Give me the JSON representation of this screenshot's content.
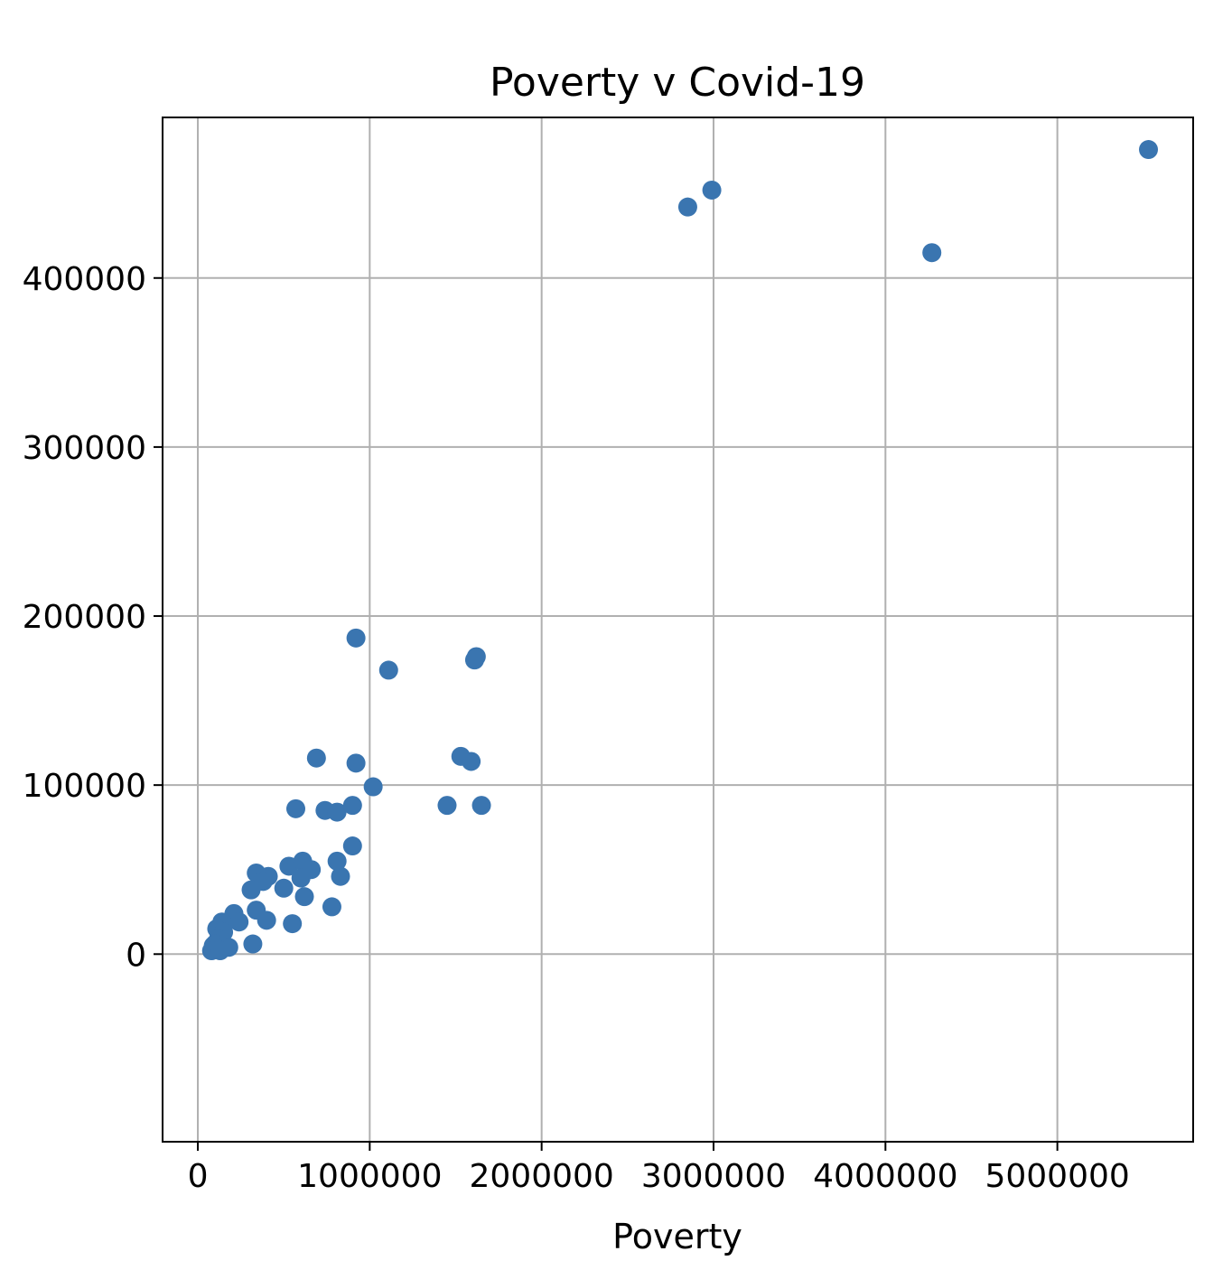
{
  "chart_data": {
    "type": "scatter",
    "title": "Poverty v Covid-19",
    "xlabel": "Poverty",
    "ylabel": "",
    "xlim": [
      -205000,
      5790000
    ],
    "ylim": [
      -111000,
      495000
    ],
    "xticks": [
      0,
      1000000,
      2000000,
      3000000,
      4000000,
      5000000
    ],
    "xtick_labels": [
      "0",
      "1000000",
      "2000000",
      "3000000",
      "4000000",
      "5000000"
    ],
    "yticks": [
      0,
      100000,
      200000,
      300000,
      400000
    ],
    "ytick_labels": [
      "0",
      "100000",
      "200000",
      "300000",
      "400000"
    ],
    "grid": true,
    "marker_color": "#3a75b0",
    "series": [
      {
        "name": "",
        "points": [
          [
            5530000,
            476000
          ],
          [
            2990000,
            452000
          ],
          [
            2850000,
            442000
          ],
          [
            4270000,
            415000
          ],
          [
            920000,
            187000
          ],
          [
            1110000,
            168000
          ],
          [
            1620000,
            176000
          ],
          [
            1610000,
            174000
          ],
          [
            690000,
            116000
          ],
          [
            920000,
            113000
          ],
          [
            1530000,
            117000
          ],
          [
            1590000,
            114000
          ],
          [
            1020000,
            99000
          ],
          [
            570000,
            86000
          ],
          [
            740000,
            85000
          ],
          [
            810000,
            84000
          ],
          [
            900000,
            88000
          ],
          [
            1450000,
            88000
          ],
          [
            1650000,
            88000
          ],
          [
            900000,
            64000
          ],
          [
            340000,
            48000
          ],
          [
            410000,
            46000
          ],
          [
            530000,
            52000
          ],
          [
            610000,
            55000
          ],
          [
            660000,
            50000
          ],
          [
            600000,
            45000
          ],
          [
            810000,
            55000
          ],
          [
            830000,
            46000
          ],
          [
            380000,
            43000
          ],
          [
            310000,
            38000
          ],
          [
            500000,
            39000
          ],
          [
            620000,
            34000
          ],
          [
            780000,
            28000
          ],
          [
            340000,
            26000
          ],
          [
            400000,
            20000
          ],
          [
            550000,
            18000
          ],
          [
            210000,
            24000
          ],
          [
            240000,
            19000
          ],
          [
            140000,
            19000
          ],
          [
            110000,
            15000
          ],
          [
            150000,
            13000
          ],
          [
            120000,
            9000
          ],
          [
            100000,
            6000
          ],
          [
            90000,
            5000
          ],
          [
            180000,
            4000
          ],
          [
            80000,
            2000
          ],
          [
            130000,
            2000
          ],
          [
            320000,
            6000
          ]
        ]
      }
    ]
  }
}
